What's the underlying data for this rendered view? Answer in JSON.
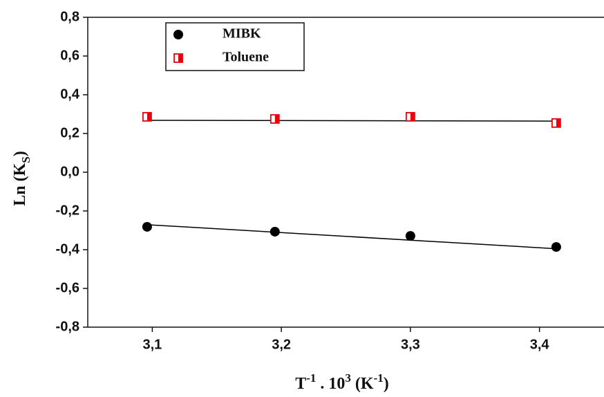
{
  "chart_data": {
    "type": "scatter",
    "x_label": [
      "T",
      "-1",
      " . 10",
      "3",
      " (K",
      "-1",
      ")"
    ],
    "y_label": [
      "Ln (K",
      "S",
      ")"
    ],
    "xlim": [
      3.05,
      3.45
    ],
    "ylim": [
      -0.8,
      0.8
    ],
    "xticks": [
      {
        "value": 3.1,
        "label": "3,1"
      },
      {
        "value": 3.2,
        "label": "3,2"
      },
      {
        "value": 3.3,
        "label": "3,3"
      },
      {
        "value": 3.4,
        "label": "3,4"
      }
    ],
    "yticks": [
      {
        "value": -0.8,
        "label": "-0,8"
      },
      {
        "value": -0.6,
        "label": "-0,6"
      },
      {
        "value": -0.4,
        "label": "-0,4"
      },
      {
        "value": -0.2,
        "label": "-0,2"
      },
      {
        "value": 0.0,
        "label": "0,0"
      },
      {
        "value": 0.2,
        "label": "0,2"
      },
      {
        "value": 0.4,
        "label": "0,4"
      },
      {
        "value": 0.6,
        "label": "0,6"
      },
      {
        "value": 0.8,
        "label": "0,8"
      }
    ],
    "series": [
      {
        "name": "MIBK",
        "color": "#000000",
        "marker": "circle",
        "x": [
          3.096,
          3.195,
          3.3,
          3.413
        ],
        "values": [
          -0.282,
          -0.307,
          -0.329,
          -0.386
        ]
      },
      {
        "name": "Toluene",
        "color": "#e8000b",
        "marker": "half-square",
        "x": [
          3.096,
          3.195,
          3.3,
          3.413
        ],
        "values": [
          0.286,
          0.275,
          0.286,
          0.254
        ]
      }
    ],
    "fit_lines": [
      {
        "color": "#000000",
        "x": [
          3.096,
          3.413
        ],
        "values": [
          -0.271,
          -0.395
        ]
      },
      {
        "color": "#000000",
        "x": [
          3.096,
          3.413
        ],
        "values": [
          0.268,
          0.264
        ]
      }
    ]
  }
}
